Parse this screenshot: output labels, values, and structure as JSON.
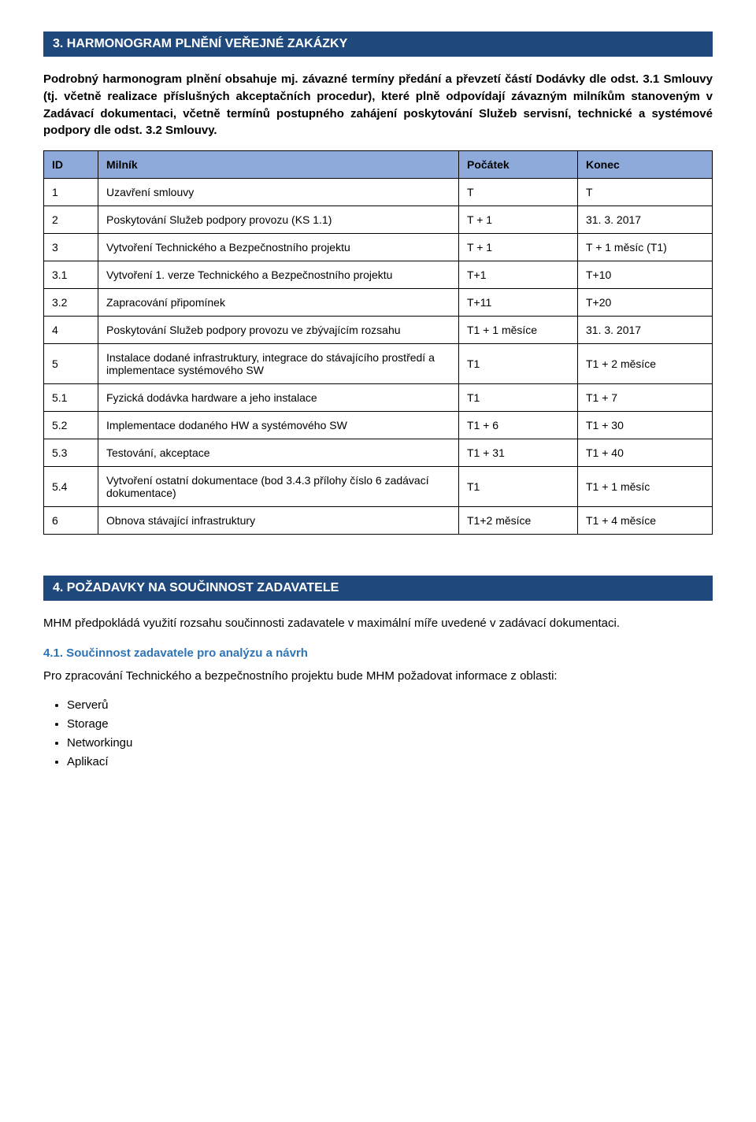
{
  "section3": {
    "heading": "3.   HARMONOGRAM PLNĚNÍ VEŘEJNÉ ZAKÁZKY",
    "para1": "Podrobný harmonogram plnění obsahuje mj. závazné termíny předání a převzetí částí Dodávky dle odst. 3.1 Smlouvy (tj. včetně realizace příslušných akceptačních procedur), které plně odpovídají závazným milníkům stanoveným v Zadávací dokumentaci, včetně termínů postupného zahájení poskytování Služeb servisní, technické a systémové podpory dle odst. 3.2 Smlouvy.",
    "table": {
      "headers": {
        "id": "ID",
        "milnik": "Milník",
        "pocatek": "Počátek",
        "konec": "Konec"
      },
      "rows": [
        {
          "id": "1",
          "milnik": "Uzavření smlouvy",
          "pocatek": "T",
          "konec": "T"
        },
        {
          "id": "2",
          "milnik": "Poskytování Služeb podpory provozu (KS 1.1)",
          "pocatek": "T + 1",
          "konec": "31. 3. 2017"
        },
        {
          "id": "3",
          "milnik": "Vytvoření Technického a Bezpečnostního projektu",
          "pocatek": "T + 1",
          "konec": "T + 1 měsíc (T1)"
        },
        {
          "id": "3.1",
          "milnik": "Vytvoření 1. verze Technického a Bezpečnostního projektu",
          "pocatek": "T+1",
          "konec": "T+10"
        },
        {
          "id": "3.2",
          "milnik": "Zapracování připomínek",
          "pocatek": "T+11",
          "konec": "T+20"
        },
        {
          "id": "4",
          "milnik": "Poskytování Služeb podpory provozu ve zbývajícím rozsahu",
          "pocatek": "T1 + 1 měsíce",
          "konec": "31. 3. 2017"
        },
        {
          "id": "5",
          "milnik": "Instalace dodané infrastruktury, integrace do stávajícího prostředí a implementace systémového SW",
          "pocatek": "T1",
          "konec": "T1 + 2 měsíce"
        },
        {
          "id": "5.1",
          "milnik": "Fyzická dodávka hardware a jeho instalace",
          "pocatek": "T1",
          "konec": "T1 + 7"
        },
        {
          "id": "5.2",
          "milnik": "Implementace dodaného HW a systémového SW",
          "pocatek": "T1 + 6",
          "konec": "T1 + 30"
        },
        {
          "id": "5.3",
          "milnik": "Testování, akceptace",
          "pocatek": "T1 + 31",
          "konec": "T1 + 40"
        },
        {
          "id": "5.4",
          "milnik": "Vytvoření ostatní dokumentace (bod 3.4.3 přílohy číslo 6 zadávací dokumentace)",
          "pocatek": "T1",
          "konec": "T1 + 1 měsíc"
        },
        {
          "id": "6",
          "milnik": "Obnova stávající infrastruktury",
          "pocatek": "T1+2 měsíce",
          "konec": "T1 + 4 měsíce"
        }
      ]
    }
  },
  "section4": {
    "heading": "4.   POŽADAVKY NA SOUČINNOST ZADAVATELE",
    "para1": "MHM předpokládá využití rozsahu součinnosti zadavatele v maximální míře uvedené v zadávací dokumentaci.",
    "sub41_heading": "4.1. Součinnost zadavatele pro analýzu a návrh",
    "sub41_para": "Pro zpracování Technického a bezpečnostního projektu bude MHM požadovat informace z oblasti:",
    "bullets": [
      "Serverů",
      "Storage",
      "Networkingu",
      "Aplikací"
    ]
  }
}
